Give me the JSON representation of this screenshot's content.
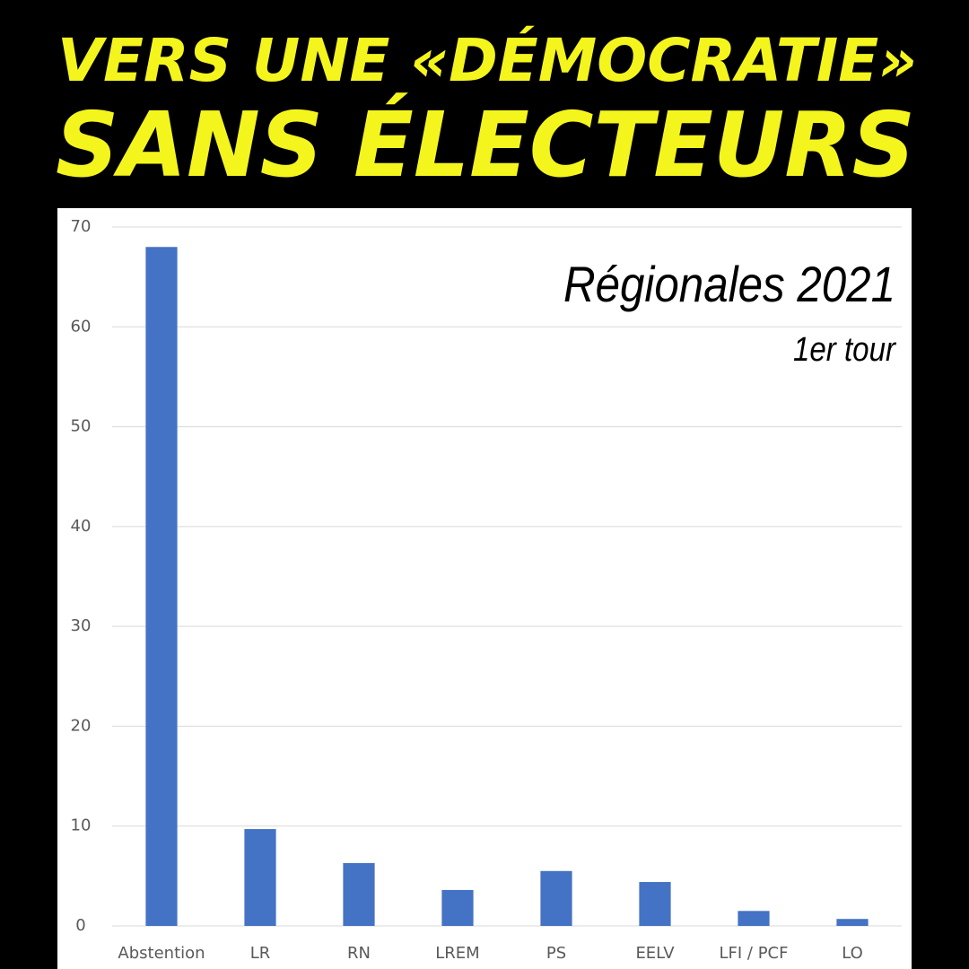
{
  "chart_data": {
    "type": "bar",
    "title_lines": [
      "VERS UNE «DÉMOCRATIE»",
      "SANS ÉLECTEURS"
    ],
    "annotations": [
      "Régionales 2021",
      "1er tour"
    ],
    "categories": [
      "Abstention",
      "LR",
      "RN",
      "LREM",
      "PS",
      "EELV",
      "LFI / PCF",
      "LO"
    ],
    "values": [
      68,
      9.7,
      6.3,
      3.6,
      5.5,
      4.4,
      1.5,
      0.7
    ],
    "color": "#4472c4",
    "ylim": [
      0,
      70
    ],
    "yticks": [
      0,
      10,
      20,
      30,
      40,
      50,
      60,
      70
    ],
    "grid": true
  }
}
